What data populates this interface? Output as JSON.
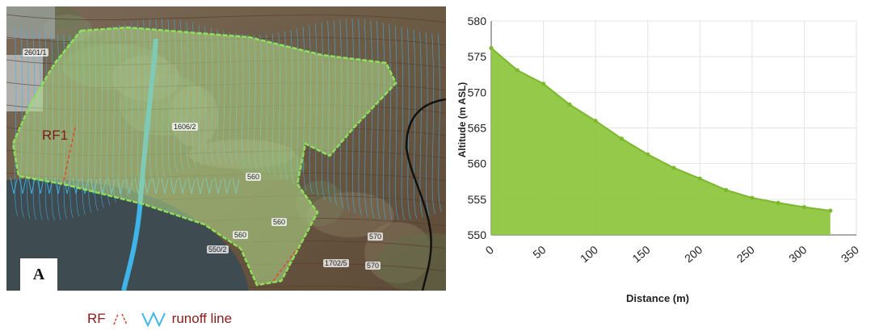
{
  "map": {
    "panel_label": "A",
    "area_label": "RF1",
    "parcels": [
      "2601/1",
      "1606/2",
      "560",
      "560",
      "560",
      "550/2",
      "1702/5",
      "570",
      "570"
    ],
    "colors": {
      "area_fill": "#b5dc8a",
      "area_edge": "#8fe05a",
      "runoff": "#3fb4e8",
      "rf": "#e0483a"
    }
  },
  "legend": {
    "rf_label": "RF",
    "runoff_label": "runoff line",
    "rf_icon": "red-dashed-lines-icon",
    "runoff_icon": "blue-lines-icon"
  },
  "chart_data": {
    "type": "area",
    "xlabel": "Distance (m)",
    "ylabel": "Altitude (m ASL)",
    "xlim": [
      0,
      350
    ],
    "ylim": [
      550,
      580
    ],
    "x_ticks": [
      0,
      50,
      100,
      150,
      200,
      250,
      300,
      350
    ],
    "y_ticks": [
      550,
      555,
      560,
      565,
      570,
      575,
      580
    ],
    "grid": true,
    "series": [
      {
        "x": [
          0,
          25,
          50,
          75,
          100,
          125,
          150,
          175,
          200,
          225,
          250,
          275,
          300,
          325
        ],
        "values": [
          576.2,
          573.1,
          571.2,
          568.3,
          566.0,
          563.5,
          561.3,
          559.4,
          557.9,
          556.3,
          555.2,
          554.5,
          553.9,
          553.4
        ],
        "color": "#8ec63f",
        "line_color": "#7cb82e"
      }
    ]
  }
}
